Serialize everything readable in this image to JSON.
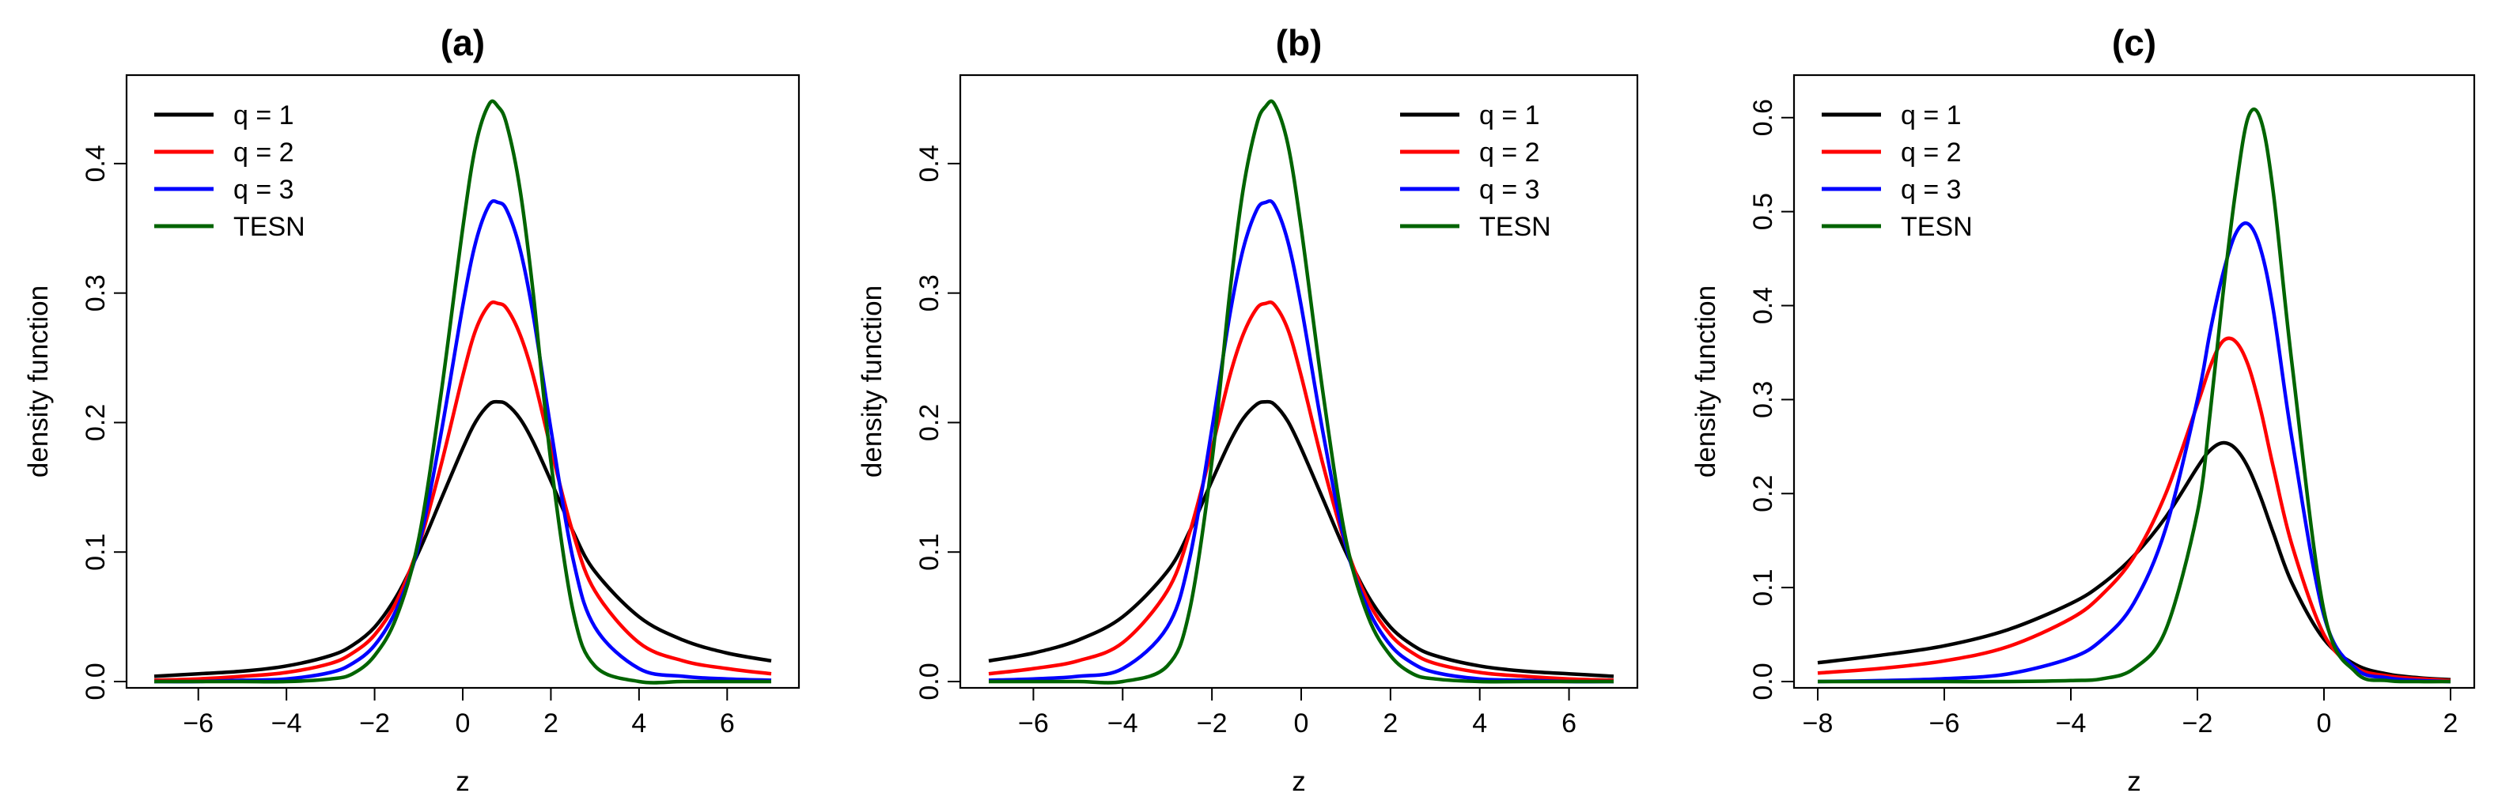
{
  "chart_data": [
    {
      "type": "line",
      "title": "(a)",
      "xlabel": "z",
      "ylabel": "density function",
      "xlim": [
        -7,
        7
      ],
      "ylim": [
        0,
        0.45
      ],
      "xticks": [
        "-6",
        "-4",
        "-2",
        "0",
        "2",
        "4",
        "6"
      ],
      "yticks": [
        "0.0",
        "0.1",
        "0.2",
        "0.3",
        "0.4"
      ],
      "legend_position": "top-left",
      "x": [
        -7,
        -6,
        -5,
        -4,
        -3,
        -2.5,
        -2,
        -1.5,
        -1,
        -0.5,
        0,
        0.3,
        0.6,
        0.8,
        1,
        1.3,
        1.6,
        2,
        2.5,
        3,
        4,
        5,
        6,
        7
      ],
      "series": [
        {
          "name": "q = 1",
          "color": "#000000",
          "values": [
            0.004,
            0.006,
            0.008,
            0.012,
            0.02,
            0.028,
            0.042,
            0.066,
            0.1,
            0.14,
            0.18,
            0.201,
            0.214,
            0.216,
            0.214,
            0.203,
            0.185,
            0.155,
            0.116,
            0.085,
            0.05,
            0.032,
            0.022,
            0.016
          ]
        },
        {
          "name": "q = 2",
          "color": "#ff0000",
          "values": [
            0.001,
            0.002,
            0.004,
            0.007,
            0.014,
            0.022,
            0.036,
            0.062,
            0.105,
            0.166,
            0.236,
            0.272,
            0.291,
            0.292,
            0.288,
            0.268,
            0.236,
            0.18,
            0.115,
            0.07,
            0.03,
            0.016,
            0.01,
            0.006
          ]
        },
        {
          "name": "q = 3",
          "color": "#0000ff",
          "values": [
            0.0,
            0.0,
            0.001,
            0.002,
            0.007,
            0.014,
            0.028,
            0.056,
            0.105,
            0.19,
            0.29,
            0.34,
            0.368,
            0.37,
            0.364,
            0.334,
            0.283,
            0.195,
            0.095,
            0.042,
            0.01,
            0.004,
            0.002,
            0.001
          ]
        },
        {
          "name": "TESN",
          "color": "#006400",
          "values": [
            0.0,
            0.0,
            0.0,
            0.0,
            0.002,
            0.006,
            0.02,
            0.05,
            0.11,
            0.22,
            0.35,
            0.415,
            0.446,
            0.444,
            0.43,
            0.38,
            0.3,
            0.17,
            0.055,
            0.012,
            0.0,
            0.0,
            0.0,
            0.0
          ]
        }
      ]
    },
    {
      "type": "line",
      "title": "(b)",
      "xlabel": "z",
      "ylabel": "density function",
      "xlim": [
        -7,
        7
      ],
      "ylim": [
        0,
        0.45
      ],
      "xticks": [
        "-6",
        "-4",
        "-2",
        "0",
        "2",
        "4",
        "6"
      ],
      "yticks": [
        "0.0",
        "0.1",
        "0.2",
        "0.3",
        "0.4"
      ],
      "legend_position": "top-right",
      "x": [
        -7,
        -6,
        -5,
        -4,
        -3,
        -2.5,
        -2,
        -1.6,
        -1.3,
        -1,
        -0.8,
        -0.6,
        -0.3,
        0,
        0.5,
        1,
        1.5,
        2,
        2.5,
        3,
        4,
        5,
        6,
        7
      ],
      "series": [
        {
          "name": "q = 1",
          "color": "#000000",
          "values": [
            0.016,
            0.022,
            0.032,
            0.05,
            0.085,
            0.116,
            0.155,
            0.185,
            0.203,
            0.214,
            0.216,
            0.214,
            0.201,
            0.18,
            0.14,
            0.1,
            0.066,
            0.042,
            0.028,
            0.02,
            0.012,
            0.008,
            0.006,
            0.004
          ]
        },
        {
          "name": "q = 2",
          "color": "#ff0000",
          "values": [
            0.006,
            0.01,
            0.016,
            0.03,
            0.07,
            0.115,
            0.18,
            0.236,
            0.268,
            0.288,
            0.292,
            0.291,
            0.272,
            0.236,
            0.166,
            0.105,
            0.062,
            0.036,
            0.022,
            0.014,
            0.007,
            0.004,
            0.002,
            0.001
          ]
        },
        {
          "name": "q = 3",
          "color": "#0000ff",
          "values": [
            0.001,
            0.002,
            0.004,
            0.01,
            0.042,
            0.095,
            0.195,
            0.283,
            0.334,
            0.364,
            0.37,
            0.368,
            0.34,
            0.29,
            0.19,
            0.105,
            0.056,
            0.028,
            0.014,
            0.007,
            0.002,
            0.001,
            0.0,
            0.0
          ]
        },
        {
          "name": "TESN",
          "color": "#006400",
          "values": [
            0.0,
            0.0,
            0.0,
            0.0,
            0.012,
            0.055,
            0.17,
            0.3,
            0.38,
            0.43,
            0.444,
            0.446,
            0.415,
            0.35,
            0.22,
            0.11,
            0.05,
            0.02,
            0.006,
            0.002,
            0.0,
            0.0,
            0.0,
            0.0
          ]
        }
      ]
    },
    {
      "type": "line",
      "title": "(c)",
      "xlabel": "z",
      "ylabel": "density function",
      "xlim": [
        -8,
        2
      ],
      "ylim": [
        0,
        0.62
      ],
      "xticks": [
        "-8",
        "-6",
        "-4",
        "-2",
        "0",
        "2"
      ],
      "yticks": [
        "0.0",
        "0.1",
        "0.2",
        "0.3",
        "0.4",
        "0.5",
        "0.6"
      ],
      "legend_position": "top-left",
      "x": [
        -8,
        -7,
        -6,
        -5,
        -4,
        -3.5,
        -3,
        -2.5,
        -2,
        -1.8,
        -1.6,
        -1.4,
        -1.2,
        -1,
        -0.8,
        -0.5,
        0,
        0.5,
        1,
        1.5,
        2
      ],
      "series": [
        {
          "name": "q = 1",
          "color": "#000000",
          "values": [
            0.02,
            0.028,
            0.038,
            0.055,
            0.083,
            0.104,
            0.134,
            0.175,
            0.228,
            0.246,
            0.254,
            0.248,
            0.228,
            0.196,
            0.158,
            0.104,
            0.045,
            0.018,
            0.008,
            0.004,
            0.002
          ]
        },
        {
          "name": "q = 2",
          "color": "#ff0000",
          "values": [
            0.009,
            0.014,
            0.022,
            0.037,
            0.067,
            0.093,
            0.133,
            0.2,
            0.295,
            0.335,
            0.362,
            0.362,
            0.337,
            0.289,
            0.228,
            0.144,
            0.05,
            0.015,
            0.006,
            0.003,
            0.001
          ]
        },
        {
          "name": "q = 3",
          "color": "#0000ff",
          "values": [
            0.0,
            0.001,
            0.003,
            0.008,
            0.025,
            0.045,
            0.084,
            0.163,
            0.3,
            0.372,
            0.433,
            0.476,
            0.487,
            0.46,
            0.395,
            0.256,
            0.07,
            0.014,
            0.004,
            0.001,
            0.0
          ]
        },
        {
          "name": "TESN",
          "color": "#006400",
          "values": [
            0.0,
            0.0,
            0.0,
            0.0,
            0.001,
            0.003,
            0.014,
            0.055,
            0.18,
            0.285,
            0.41,
            0.52,
            0.6,
            0.598,
            0.52,
            0.335,
            0.075,
            0.01,
            0.001,
            0.0,
            0.0
          ]
        }
      ]
    }
  ]
}
